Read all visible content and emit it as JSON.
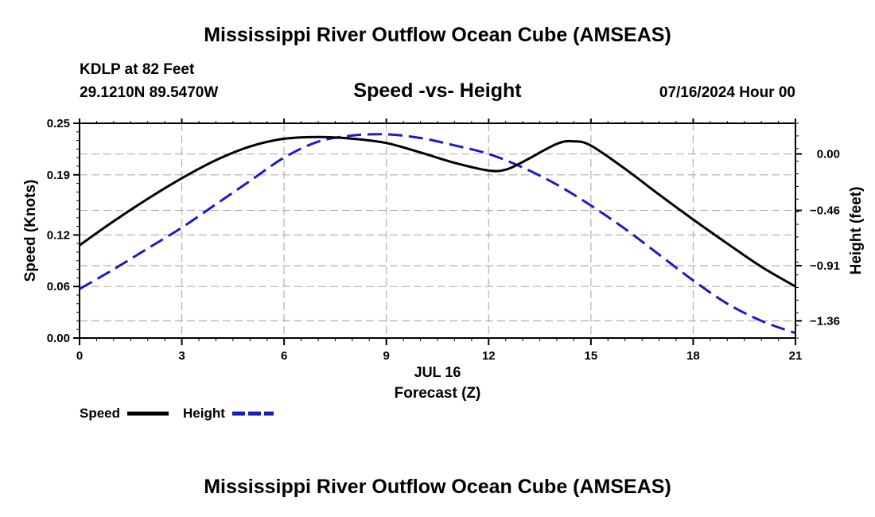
{
  "header": {
    "title": "Mississippi River Outflow Ocean Cube (AMSEAS)",
    "station": "KDLP at 82 Feet",
    "coords": "29.1210N  89.5470W",
    "subtitle": "Speed -vs- Height",
    "datetime": "07/16/2024 Hour 00"
  },
  "footer": {
    "title": "Mississippi River Outflow Ocean Cube (AMSEAS)"
  },
  "chart_data": {
    "type": "line",
    "title": "Speed -vs- Height",
    "xlabel": "Forecast (Z)",
    "xdate_label": "JUL 16",
    "ylabel": "Speed (Knots)",
    "y2label": "Height (feet)",
    "xlim": [
      0,
      21
    ],
    "ylim": [
      0,
      0.25
    ],
    "y2lim": [
      -1.5,
      0.25
    ],
    "xticks": [
      "0",
      "3",
      "6",
      "9",
      "12",
      "15",
      "18",
      "21"
    ],
    "yticks": [
      "0.00",
      "0.06",
      "0.12",
      "0.19",
      "0.25"
    ],
    "y2ticks": [
      "0.00",
      "−0.46",
      "−0.91",
      "−1.36"
    ],
    "grid": true,
    "legend": "bottom-left",
    "colors": {
      "speed": "#000000",
      "height": "#1a1acc",
      "grid": "#b0b0b0"
    },
    "series": [
      {
        "name": "Speed",
        "axis": "left",
        "style": "solid",
        "x": [
          0,
          1,
          2,
          3,
          4,
          5,
          6,
          7,
          8,
          9,
          10,
          11,
          12,
          12.5,
          13,
          14,
          14.5,
          15,
          16,
          17,
          18,
          19,
          20,
          21
        ],
        "y": [
          0.108,
          0.136,
          0.162,
          0.186,
          0.207,
          0.223,
          0.232,
          0.234,
          0.232,
          0.227,
          0.216,
          0.204,
          0.195,
          0.196,
          0.205,
          0.226,
          0.229,
          0.224,
          0.197,
          0.167,
          0.138,
          0.11,
          0.083,
          0.06
        ]
      },
      {
        "name": "Height",
        "axis": "right",
        "style": "dashed",
        "x": [
          0,
          1,
          2,
          3,
          4,
          5,
          6,
          7,
          8,
          9,
          10,
          11,
          12,
          13,
          14,
          15,
          16,
          17,
          18,
          19,
          20,
          21
        ],
        "y": [
          -1.1,
          -0.94,
          -0.77,
          -0.6,
          -0.41,
          -0.22,
          -0.03,
          0.1,
          0.15,
          0.16,
          0.13,
          0.07,
          0.0,
          -0.11,
          -0.25,
          -0.42,
          -0.61,
          -0.82,
          -1.03,
          -1.22,
          -1.36,
          -1.46
        ]
      }
    ]
  }
}
